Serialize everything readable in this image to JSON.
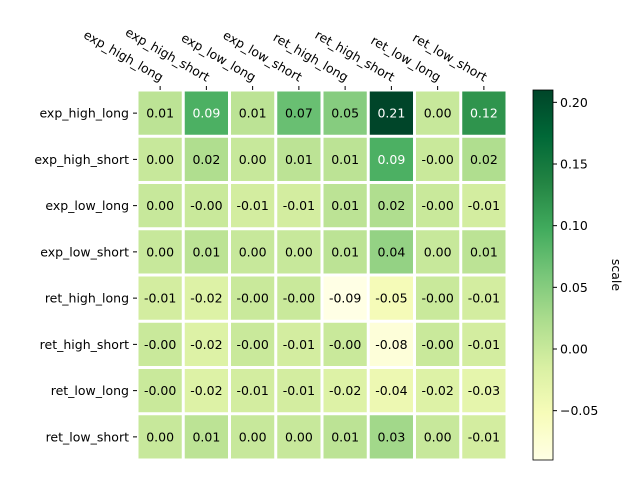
{
  "chart_data": {
    "type": "heatmap",
    "title": "",
    "xlabel": "",
    "ylabel": "",
    "columns": [
      "exp_high_long",
      "exp_high_short",
      "exp_low_long",
      "exp_low_short",
      "ret_high_long",
      "ret_high_short",
      "ret_low_long",
      "ret_low_short"
    ],
    "rows": [
      "exp_high_long",
      "exp_high_short",
      "exp_low_long",
      "exp_low_short",
      "ret_high_long",
      "ret_high_short",
      "ret_low_long",
      "ret_low_short"
    ],
    "values": [
      [
        0.01,
        0.09,
        0.01,
        0.07,
        0.05,
        0.21,
        0.0,
        0.12
      ],
      [
        0.0,
        0.02,
        0.0,
        0.01,
        0.01,
        0.09,
        -0.001,
        0.02
      ],
      [
        0.0,
        -0.001,
        -0.01,
        -0.01,
        0.01,
        0.02,
        -0.001,
        -0.01
      ],
      [
        0.0,
        0.01,
        0.0,
        0.0,
        0.01,
        0.04,
        0.0,
        0.01
      ],
      [
        -0.01,
        -0.02,
        -0.001,
        -0.001,
        -0.09,
        -0.05,
        -0.001,
        -0.01
      ],
      [
        -0.001,
        -0.02,
        -0.001,
        -0.01,
        -0.001,
        -0.08,
        -0.001,
        -0.01
      ],
      [
        -0.001,
        -0.02,
        -0.01,
        -0.01,
        -0.02,
        -0.04,
        -0.02,
        -0.03
      ],
      [
        0.0,
        0.01,
        0.0,
        0.0,
        0.01,
        0.03,
        0.0,
        -0.01
      ]
    ],
    "cell_labels": [
      [
        "0.01",
        "0.09",
        "0.01",
        "0.07",
        "0.05",
        "0.21",
        "0.00",
        "0.12"
      ],
      [
        "0.00",
        "0.02",
        "0.00",
        "0.01",
        "0.01",
        "0.09",
        "-0.00",
        "0.02"
      ],
      [
        "0.00",
        "-0.00",
        "-0.01",
        "-0.01",
        "0.01",
        "0.02",
        "-0.00",
        "-0.01"
      ],
      [
        "0.00",
        "0.01",
        "0.00",
        "0.00",
        "0.01",
        "0.04",
        "0.00",
        "0.01"
      ],
      [
        "-0.01",
        "-0.02",
        "-0.00",
        "-0.00",
        "-0.09",
        "-0.05",
        "-0.00",
        "-0.01"
      ],
      [
        "-0.00",
        "-0.02",
        "-0.00",
        "-0.01",
        "-0.00",
        "-0.08",
        "-0.00",
        "-0.01"
      ],
      [
        "-0.00",
        "-0.02",
        "-0.01",
        "-0.01",
        "-0.02",
        "-0.04",
        "-0.02",
        "-0.03"
      ],
      [
        "0.00",
        "0.01",
        "0.00",
        "0.00",
        "0.01",
        "0.03",
        "0.00",
        "-0.01"
      ]
    ],
    "colorbar": {
      "label": "scale",
      "range": [
        -0.09,
        0.21
      ],
      "ticks": [
        -0.05,
        0.0,
        0.05,
        0.1,
        0.15,
        0.2
      ],
      "tick_labels": [
        "−0.05",
        "0.00",
        "0.05",
        "0.10",
        "0.15",
        "0.20"
      ],
      "colormap": "YlGn",
      "colors": [
        "#ffffe5",
        "#f7fcb9",
        "#d9f0a3",
        "#addd8e",
        "#78c679",
        "#41ab5d",
        "#238443",
        "#006837",
        "#004529"
      ]
    },
    "grid": false,
    "legend": "none",
    "x_tick_position": "top"
  }
}
